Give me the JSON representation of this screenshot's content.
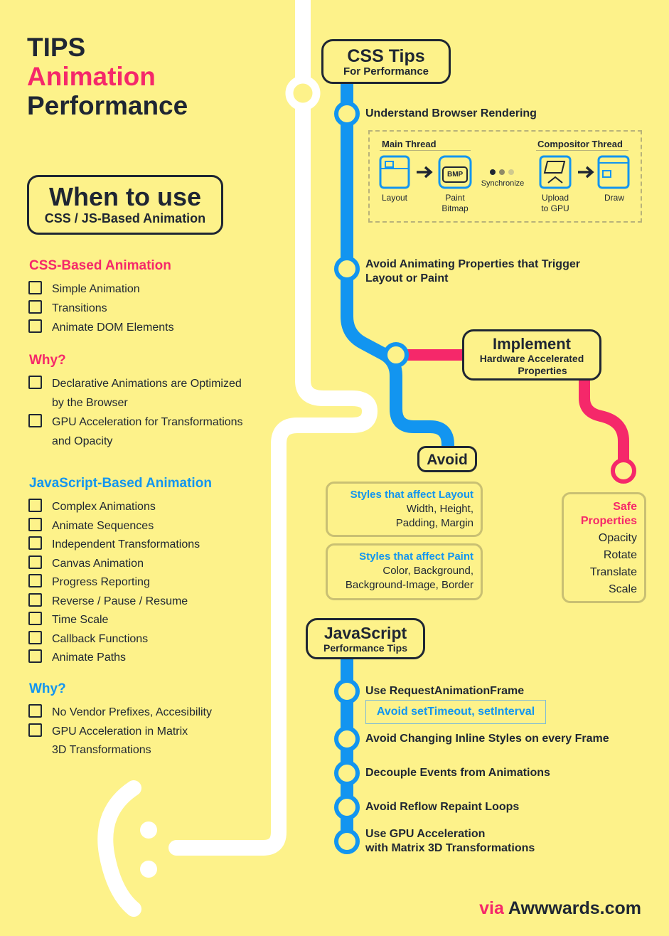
{
  "title": {
    "line1": "TIPS",
    "line2": "Animation",
    "line3": "Performance"
  },
  "when_box": {
    "heading": "When to use",
    "sub": "CSS / JS-Based Animation"
  },
  "css_based": {
    "heading": "CSS-Based Animation",
    "items": [
      "Simple Animation",
      "Transitions",
      "Animate DOM Elements"
    ],
    "why_heading": "Why?",
    "why_items": [
      "Declarative Animations are Optimized",
      "by the Browser",
      "GPU Acceleration for Transformations",
      "and Opacity"
    ]
  },
  "js_based": {
    "heading": "JavaScript-Based Animation",
    "items": [
      "Complex Animations",
      "Animate Sequences",
      "Independent Transformations",
      "Canvas Animation",
      "Progress Reporting",
      "Reverse / Pause / Resume",
      "Time Scale",
      "Callback Functions",
      "Animate Paths"
    ],
    "why_heading": "Why?",
    "why_items": [
      "No Vendor Prefixes, Accesibility",
      "GPU Acceleration in Matrix",
      "3D Transformations"
    ]
  },
  "css_tips": {
    "title": "CSS Tips",
    "subtitle": "For Performance",
    "step1": "Understand Browser Rendering",
    "pipeline": {
      "main_thread": "Main Thread",
      "compositor_thread": "Compositor Thread",
      "layout": "Layout",
      "paint_bitmap_1": "Paint",
      "paint_bitmap_2": "Bitmap",
      "bmp": "BMP",
      "synchronize": "Synchronize",
      "upload_1": "Upload",
      "upload_2": "to GPU",
      "draw": "Draw"
    },
    "step2_line1": "Avoid Animating Properties that Trigger",
    "step2_line2": "Layout or Paint"
  },
  "implement": {
    "title": "Implement",
    "line1": "Hardware Accelerated",
    "line2": "Properties"
  },
  "avoid": {
    "title": "Avoid",
    "layout_head": "Styles that affect Layout",
    "layout_l1": "Width, Height,",
    "layout_l2": "Padding, Margin",
    "paint_head": "Styles that affect Paint",
    "paint_l1": "Color, Background,",
    "paint_l2": "Background-Image, Border"
  },
  "safe": {
    "head1": "Safe",
    "head2": "Properties",
    "items": [
      "Opacity",
      "Rotate",
      "Translate",
      "Scale"
    ]
  },
  "js_tips": {
    "title": "JavaScript",
    "subtitle": "Performance Tips",
    "s1": "Use RequestAnimationFrame",
    "s1_note": "Avoid setTimeout, setInterval",
    "s2": "Avoid Changing Inline Styles on every Frame",
    "s3": "Decouple Events from Animations",
    "s4": "Avoid Reflow Repaint Loops",
    "s5_l1": "Use GPU Acceleration",
    "s5_l2": "with Matrix 3D Transformations"
  },
  "footer": {
    "via": "via",
    "site": "Awwwards.com"
  },
  "colors": {
    "background": "#fdf28a",
    "pink": "#f5286a",
    "blue": "#1295f0",
    "dark": "#1f2633",
    "white": "#ffffff"
  }
}
